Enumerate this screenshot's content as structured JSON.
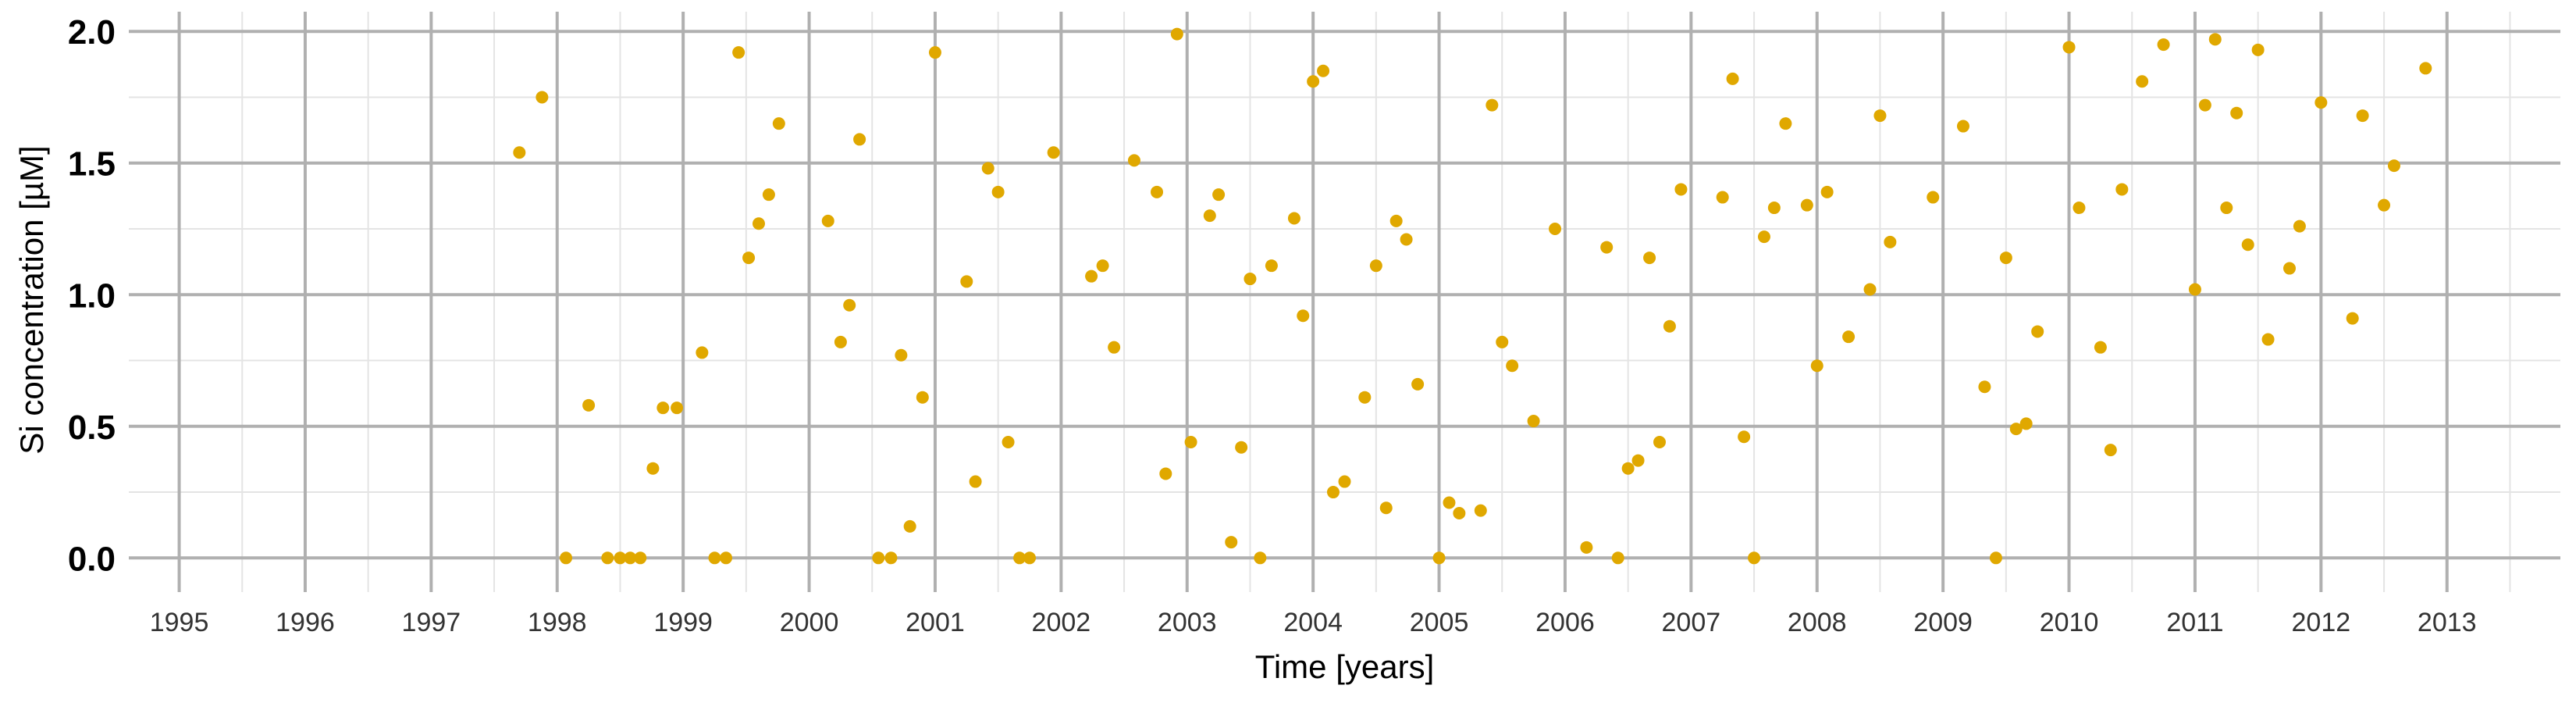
{
  "chart_data": {
    "type": "scatter",
    "xlabel": "Time [years]",
    "ylabel": "Si concentration [µM]",
    "xlim": [
      1994.6,
      2013.9
    ],
    "ylim": [
      -0.1,
      2.06
    ],
    "xticks": [
      "1995",
      "1996",
      "1997",
      "1998",
      "1999",
      "2000",
      "2001",
      "2002",
      "2003",
      "2004",
      "2005",
      "2006",
      "2007",
      "2008",
      "2009",
      "2010",
      "2011",
      "2012",
      "2013"
    ],
    "yticks": [
      "0.0",
      "0.5",
      "1.0",
      "1.5",
      "2.0"
    ],
    "grid": true,
    "point_color": "#E0A800",
    "grid_color": "#b0b0b0",
    "series": [
      {
        "points": [
          [
            1997.7,
            1.54
          ],
          [
            1997.88,
            1.75
          ],
          [
            1998.07,
            0.0
          ],
          [
            1998.25,
            0.58
          ],
          [
            1998.4,
            0.0
          ],
          [
            1998.5,
            0.0
          ],
          [
            1998.58,
            0.0
          ],
          [
            1998.66,
            0.0
          ],
          [
            1998.76,
            0.34
          ],
          [
            1998.84,
            0.57
          ],
          [
            1998.95,
            0.57
          ],
          [
            1999.15,
            0.78
          ],
          [
            1999.25,
            0.0
          ],
          [
            1999.34,
            0.0
          ],
          [
            1999.44,
            1.92
          ],
          [
            1999.52,
            1.14
          ],
          [
            1999.6,
            1.27
          ],
          [
            1999.68,
            1.38
          ],
          [
            1999.76,
            1.65
          ],
          [
            2000.15,
            1.28
          ],
          [
            2000.25,
            0.82
          ],
          [
            2000.32,
            0.96
          ],
          [
            2000.4,
            1.59
          ],
          [
            2000.55,
            0.0
          ],
          [
            2000.65,
            0.0
          ],
          [
            2000.73,
            0.77
          ],
          [
            2000.8,
            0.12
          ],
          [
            2000.9,
            0.61
          ],
          [
            2001.0,
            1.92
          ],
          [
            2001.25,
            1.05
          ],
          [
            2001.32,
            0.29
          ],
          [
            2001.42,
            1.48
          ],
          [
            2001.5,
            1.39
          ],
          [
            2001.58,
            0.44
          ],
          [
            2001.67,
            0.0
          ],
          [
            2001.75,
            0.0
          ],
          [
            2001.94,
            1.54
          ],
          [
            2002.24,
            1.07
          ],
          [
            2002.33,
            1.11
          ],
          [
            2002.42,
            0.8
          ],
          [
            2002.58,
            1.51
          ],
          [
            2002.76,
            1.39
          ],
          [
            2002.83,
            0.32
          ],
          [
            2002.92,
            1.99
          ],
          [
            2003.03,
            0.44
          ],
          [
            2003.18,
            1.3
          ],
          [
            2003.25,
            1.38
          ],
          [
            2003.35,
            0.06
          ],
          [
            2003.43,
            0.42
          ],
          [
            2003.5,
            1.06
          ],
          [
            2003.58,
            0.0
          ],
          [
            2003.67,
            1.11
          ],
          [
            2003.85,
            1.29
          ],
          [
            2003.92,
            0.92
          ],
          [
            2004.0,
            1.81
          ],
          [
            2004.08,
            1.85
          ],
          [
            2004.16,
            0.25
          ],
          [
            2004.25,
            0.29
          ],
          [
            2004.41,
            0.61
          ],
          [
            2004.5,
            1.11
          ],
          [
            2004.58,
            0.19
          ],
          [
            2004.66,
            1.28
          ],
          [
            2004.74,
            1.21
          ],
          [
            2004.83,
            0.66
          ],
          [
            2005.0,
            0.0
          ],
          [
            2005.08,
            0.21
          ],
          [
            2005.16,
            0.17
          ],
          [
            2005.33,
            0.18
          ],
          [
            2005.42,
            1.72
          ],
          [
            2005.5,
            0.82
          ],
          [
            2005.58,
            0.73
          ],
          [
            2005.75,
            0.52
          ],
          [
            2005.92,
            1.25
          ],
          [
            2006.17,
            0.04
          ],
          [
            2006.33,
            1.18
          ],
          [
            2006.42,
            0.0
          ],
          [
            2006.5,
            0.34
          ],
          [
            2006.58,
            0.37
          ],
          [
            2006.67,
            1.14
          ],
          [
            2006.75,
            0.44
          ],
          [
            2006.83,
            0.88
          ],
          [
            2006.92,
            1.4
          ],
          [
            2007.25,
            1.37
          ],
          [
            2007.33,
            1.82
          ],
          [
            2007.42,
            0.46
          ],
          [
            2007.5,
            0.0
          ],
          [
            2007.58,
            1.22
          ],
          [
            2007.66,
            1.33
          ],
          [
            2007.75,
            1.65
          ],
          [
            2007.92,
            1.34
          ],
          [
            2008.0,
            0.73
          ],
          [
            2008.08,
            1.39
          ],
          [
            2008.25,
            0.84
          ],
          [
            2008.42,
            1.02
          ],
          [
            2008.5,
            1.68
          ],
          [
            2008.58,
            1.2
          ],
          [
            2008.92,
            1.37
          ],
          [
            2009.16,
            1.64
          ],
          [
            2009.33,
            0.65
          ],
          [
            2009.42,
            0.0
          ],
          [
            2009.5,
            1.14
          ],
          [
            2009.58,
            0.49
          ],
          [
            2009.66,
            0.51
          ],
          [
            2009.75,
            0.86
          ],
          [
            2010.0,
            1.94
          ],
          [
            2010.08,
            1.33
          ],
          [
            2010.25,
            0.8
          ],
          [
            2010.33,
            0.41
          ],
          [
            2010.42,
            1.4
          ],
          [
            2010.58,
            1.81
          ],
          [
            2010.75,
            1.95
          ],
          [
            2011.0,
            1.02
          ],
          [
            2011.08,
            1.72
          ],
          [
            2011.16,
            1.97
          ],
          [
            2011.25,
            1.33
          ],
          [
            2011.33,
            1.69
          ],
          [
            2011.42,
            1.19
          ],
          [
            2011.5,
            1.93
          ],
          [
            2011.58,
            0.83
          ],
          [
            2011.75,
            1.1
          ],
          [
            2011.83,
            1.26
          ],
          [
            2012.0,
            1.73
          ],
          [
            2012.25,
            0.91
          ],
          [
            2012.33,
            1.68
          ],
          [
            2012.5,
            1.34
          ],
          [
            2012.58,
            1.49
          ],
          [
            2012.83,
            1.86
          ]
        ]
      }
    ]
  }
}
